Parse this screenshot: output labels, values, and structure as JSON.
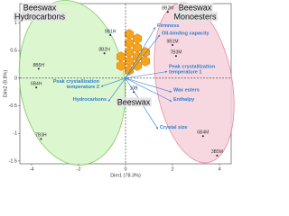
{
  "chart_data": {
    "type": "scatter",
    "x_label": "Dim1 (78.3%)",
    "y_label": "Dim2 (8.8%)",
    "xlim": [
      -4.5,
      4.5
    ],
    "ylim": [
      -1.55,
      1.35
    ],
    "xticks": [
      -4,
      -2,
      0,
      2,
      4
    ],
    "yticks": [
      1,
      0.5,
      0,
      -0.5,
      -1,
      -1.5
    ],
    "point_labels": [
      "9B1H",
      "8B2H",
      "8B5H",
      "6B4H",
      "7B3H",
      "10B",
      "8B2M",
      "9B1M",
      "7B3M",
      "6B4M",
      "3B5M"
    ],
    "x": [
      -0.65,
      -0.9,
      -3.7,
      -3.8,
      -3.6,
      0.35,
      1.8,
      2.0,
      2.15,
      3.3,
      3.9
    ],
    "values": [
      0.78,
      0.45,
      0.17,
      -0.17,
      -1.1,
      -0.25,
      1.2,
      0.6,
      0.4,
      -1.05,
      -1.4
    ],
    "color": "#222222",
    "variables": {
      "labels": [
        "Firmness",
        "Oil-binding capacity",
        "Peak crystallization temperature 1",
        "Wax esters",
        "Enthalpy",
        "Crystal size",
        "Peak crystallization temperature 2",
        "Hydrocarbons"
      ],
      "x": [
        1.27,
        1.46,
        1.77,
        1.96,
        1.96,
        1.38,
        -1.04,
        -0.73
      ],
      "y": [
        0.92,
        0.78,
        0.12,
        -0.25,
        -0.42,
        -0.92,
        -0.15,
        -0.42
      ],
      "color": "#2a7fd0"
    },
    "annotations": [
      "Beeswax",
      "Hydrocarbons",
      "Beeswax",
      "Monoesters",
      "Beeswax"
    ]
  }
}
